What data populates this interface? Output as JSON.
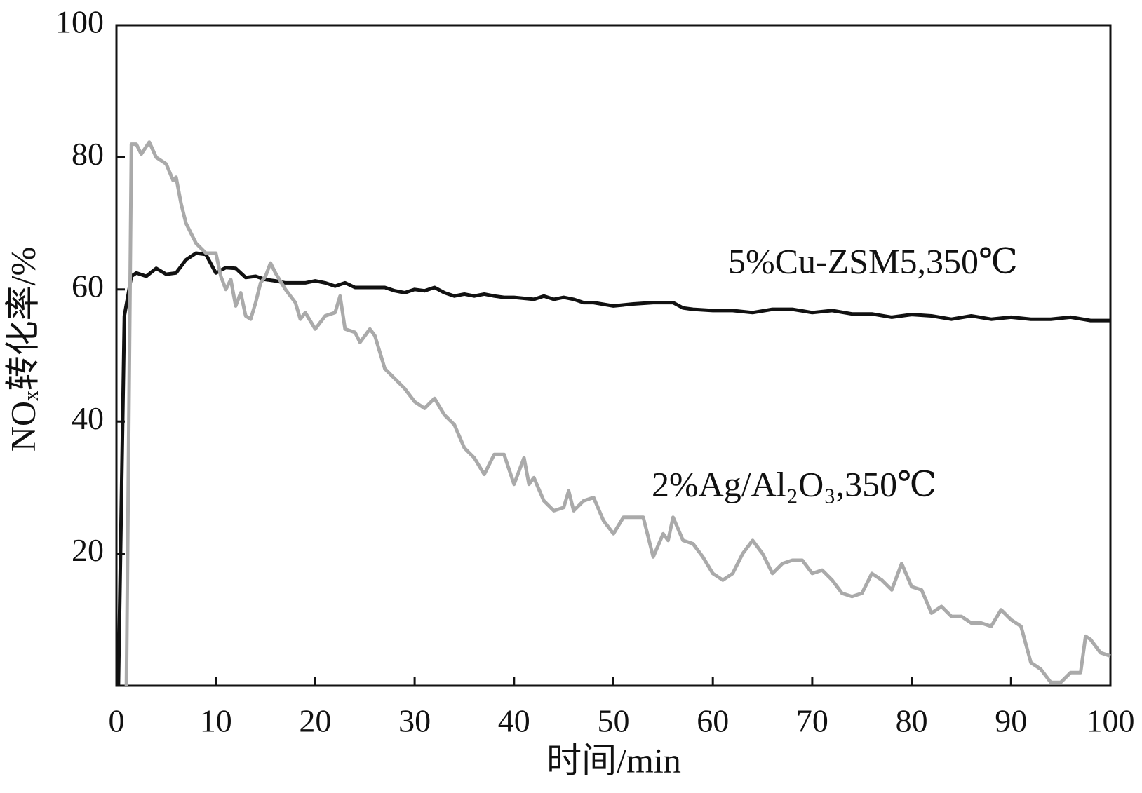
{
  "chart_data": {
    "type": "line",
    "xlabel": "时间/min",
    "ylabel": "NOₓ转化率/%",
    "xlim": [
      0,
      100
    ],
    "ylim": [
      0,
      100
    ],
    "xticks": [
      0,
      10,
      20,
      30,
      40,
      50,
      60,
      70,
      80,
      90,
      100
    ],
    "yticks": [
      20,
      40,
      60,
      80,
      100
    ],
    "series": [
      {
        "name": "5%Cu-ZSM5,350℃",
        "color": "#111111",
        "x": [
          0.2,
          0.8,
          1.5,
          2,
          3,
          4,
          5,
          6,
          7,
          8,
          9,
          10,
          11,
          12,
          13,
          14,
          15,
          16,
          17,
          18,
          19,
          20,
          21,
          22,
          23,
          24,
          25,
          26,
          27,
          28,
          29,
          30,
          31,
          32,
          33,
          34,
          35,
          36,
          37,
          38,
          39,
          40,
          42,
          43,
          44,
          45,
          46,
          47,
          48,
          50,
          52,
          54,
          56,
          57,
          58,
          60,
          62,
          64,
          66,
          68,
          70,
          72,
          74,
          76,
          78,
          80,
          82,
          84,
          86,
          88,
          90,
          92,
          94,
          96,
          98,
          100
        ],
        "values": [
          0,
          56,
          62,
          62.5,
          62,
          63.2,
          62.3,
          62.5,
          64.5,
          65.5,
          65.3,
          62.5,
          63.3,
          63.2,
          61.8,
          62,
          61.5,
          61.3,
          61,
          61,
          61,
          61.3,
          61,
          60.5,
          61,
          60.3,
          60.3,
          60.3,
          60.3,
          59.8,
          59.5,
          60,
          59.8,
          60.3,
          59.5,
          59,
          59.3,
          59,
          59.3,
          59,
          58.8,
          58.8,
          58.5,
          59,
          58.5,
          58.8,
          58.5,
          58,
          58,
          57.5,
          57.8,
          58,
          58,
          57.2,
          57,
          56.8,
          56.8,
          56.5,
          57,
          57,
          56.5,
          56.8,
          56.3,
          56.3,
          55.8,
          56.2,
          56,
          55.5,
          56,
          55.5,
          55.8,
          55.5,
          55.5,
          55.8,
          55.3,
          55.3
        ]
      },
      {
        "name": "2%Ag/Al₂O₃,350℃",
        "color": "#aaaaaa",
        "x": [
          1,
          1.5,
          2,
          2.5,
          3.3,
          4,
          5,
          5.7,
          6,
          6.5,
          7,
          8,
          9,
          10,
          10.5,
          11,
          11.5,
          12,
          12.5,
          13,
          13.5,
          14,
          14.5,
          15,
          15.5,
          16,
          17,
          18,
          18.5,
          19,
          20,
          21,
          22,
          22.5,
          23,
          24,
          24.5,
          25,
          25.5,
          26,
          27,
          28,
          29,
          30,
          31,
          32,
          33,
          34,
          35,
          36,
          37,
          38,
          39,
          40,
          41,
          41.5,
          42,
          43,
          44,
          45,
          45.5,
          46,
          47,
          48,
          49,
          50,
          51,
          52,
          53,
          54,
          55,
          55.5,
          56,
          57,
          58,
          59,
          60,
          61,
          62,
          63,
          64,
          65,
          66,
          67,
          68,
          69,
          70,
          71,
          72,
          73,
          74,
          75,
          76,
          77,
          78,
          79,
          80,
          81,
          82,
          83,
          84,
          85,
          86,
          87,
          88,
          89,
          90,
          91,
          92,
          93,
          94,
          95,
          96,
          97,
          97.5,
          98,
          99,
          100
        ],
        "values": [
          0,
          82,
          82,
          80.5,
          82.3,
          80,
          79,
          76.5,
          77,
          73,
          70,
          67,
          65.5,
          65.5,
          62,
          60,
          61.5,
          57.5,
          59.5,
          56,
          55.5,
          58,
          61,
          62,
          64,
          62.5,
          60,
          58,
          55.5,
          56.5,
          54,
          56,
          56.5,
          59,
          54,
          53.5,
          52,
          53,
          54,
          53,
          48,
          46.5,
          45,
          43,
          42,
          43.5,
          41,
          39.5,
          36,
          34.5,
          32,
          35,
          35,
          30.5,
          34.5,
          30.5,
          31.5,
          28,
          26.5,
          27,
          29.5,
          26.5,
          28,
          28.5,
          25,
          23,
          25.5,
          25.5,
          25.5,
          19.5,
          23,
          22,
          25.5,
          22,
          21.5,
          19.5,
          17,
          16,
          17,
          20,
          22,
          20,
          17,
          18.5,
          19,
          19,
          17,
          17.5,
          16,
          14,
          13.5,
          14,
          17,
          16,
          14.5,
          18.5,
          15,
          14.5,
          11,
          12,
          10.5,
          10.5,
          9.5,
          9.5,
          9,
          11.5,
          10,
          9,
          3.5,
          2.5,
          0.5,
          0.5,
          2,
          2,
          7.5,
          7,
          5,
          4.5
        ]
      }
    ]
  }
}
